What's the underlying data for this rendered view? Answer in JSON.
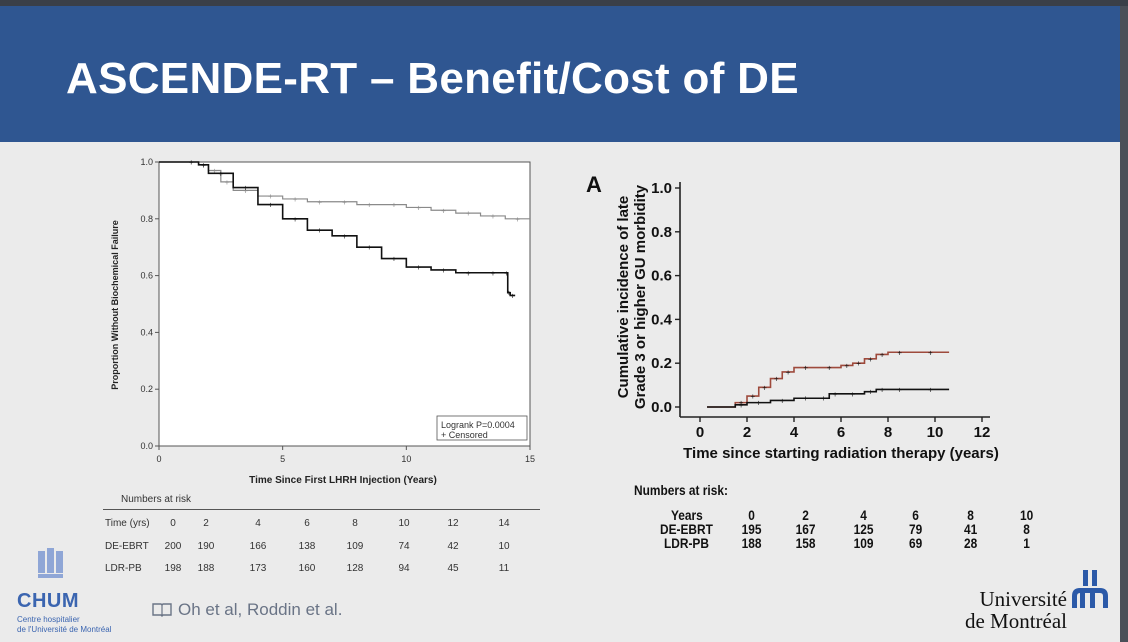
{
  "slide": {
    "title": "ASCENDE-RT – Benefit/Cost of DE",
    "citation": "Oh et al, Roddin et al.",
    "chum_name": "CHUM",
    "chum_sub_line1": "Centre hospitalier",
    "chum_sub_line2": "de l'Université de Montréal",
    "udem_line1": "Université",
    "udem_line2": "de Montréal",
    "colors": {
      "header": "#2f5691",
      "logo_blue": "#3b65b0",
      "brown": "#9e4a3c"
    }
  },
  "chart_data": [
    {
      "type": "line",
      "title": "",
      "xlabel": "Time Since First LHRH Injection (Years)",
      "ylabel": "Proportion Without Biochemical Failure",
      "xlim": [
        0,
        15
      ],
      "ylim": [
        0,
        1.0
      ],
      "xticks": [
        "0",
        "5",
        "10",
        "15"
      ],
      "yticks": [
        "0.0",
        "0.2",
        "0.4",
        "0.6",
        "0.8",
        "1.0"
      ],
      "legend": {
        "line1": "Logrank P=0.0004",
        "line2": "+ Censored",
        "position": "bottom-right"
      },
      "series": [
        {
          "name": "LDR-PB",
          "style": "gray",
          "x": [
            0,
            1,
            1.6,
            2,
            2.5,
            3,
            4,
            5,
            6,
            7,
            8,
            9,
            10,
            11,
            12,
            13,
            14,
            15
          ],
          "y": [
            1.0,
            1.0,
            0.99,
            0.97,
            0.93,
            0.9,
            0.88,
            0.87,
            0.86,
            0.86,
            0.85,
            0.85,
            0.84,
            0.83,
            0.82,
            0.81,
            0.8,
            0.8
          ]
        },
        {
          "name": "DE-EBRT",
          "style": "black",
          "x": [
            0,
            1,
            1.6,
            2,
            3,
            4,
            5,
            6,
            7,
            8,
            9,
            10,
            11,
            12,
            13,
            14,
            14.1,
            14.2,
            14.4
          ],
          "y": [
            1.0,
            1.0,
            0.99,
            0.96,
            0.91,
            0.85,
            0.8,
            0.76,
            0.74,
            0.7,
            0.66,
            0.63,
            0.62,
            0.61,
            0.61,
            0.61,
            0.54,
            0.53,
            0.53
          ]
        }
      ],
      "risk_table": {
        "heading": "Numbers at risk",
        "row_header": "Time (yrs)",
        "times": [
          "0",
          "2",
          "4",
          "6",
          "8",
          "10",
          "12",
          "14"
        ],
        "rows": [
          {
            "label": "DE-EBRT",
            "values": [
              "200",
              "190",
              "166",
              "138",
              "109",
              "74",
              "42",
              "10"
            ]
          },
          {
            "label": "LDR-PB",
            "values": [
              "198",
              "188",
              "173",
              "160",
              "128",
              "94",
              "45",
              "11"
            ]
          }
        ]
      }
    },
    {
      "type": "line",
      "panel_label": "A",
      "xlabel": "Time since starting radiation therapy (years)",
      "ylabel_line1": "Cumulative incidence of late",
      "ylabel_line2": "Grade 3 or higher GU morbidity",
      "xlim": [
        0,
        12
      ],
      "ylim": [
        0,
        1.0
      ],
      "xticks": [
        "0",
        "2",
        "4",
        "6",
        "8",
        "10",
        "12"
      ],
      "yticks": [
        "0.0",
        "0.2",
        "0.4",
        "0.6",
        "0.8",
        "1.0"
      ],
      "series": [
        {
          "name": "DE-EBRT",
          "style": "brown",
          "x": [
            0.3,
            1,
            1.5,
            2,
            2.5,
            3,
            3.5,
            4,
            5,
            6,
            6.5,
            7,
            7.5,
            8,
            9,
            10.6
          ],
          "y": [
            0,
            0,
            0.02,
            0.05,
            0.09,
            0.13,
            0.16,
            0.18,
            0.18,
            0.19,
            0.2,
            0.22,
            0.24,
            0.25,
            0.25,
            0.25
          ]
        },
        {
          "name": "LDR-PB",
          "style": "black",
          "x": [
            0.3,
            1,
            1.5,
            2,
            3,
            4,
            5,
            5.5,
            6,
            7,
            7.5,
            8,
            9,
            10.6
          ],
          "y": [
            0,
            0,
            0.01,
            0.02,
            0.03,
            0.04,
            0.04,
            0.06,
            0.06,
            0.07,
            0.08,
            0.08,
            0.08,
            0.08
          ]
        }
      ],
      "risk_table": {
        "heading": "Numbers at risk:",
        "row_header": "Years",
        "times": [
          "0",
          "2",
          "4",
          "6",
          "8",
          "10"
        ],
        "rows": [
          {
            "label": "DE-EBRT",
            "values": [
              "195",
              "167",
              "125",
              "79",
              "41",
              "8"
            ]
          },
          {
            "label": "LDR-PB",
            "values": [
              "188",
              "158",
              "109",
              "69",
              "28",
              "1"
            ]
          }
        ]
      }
    }
  ]
}
